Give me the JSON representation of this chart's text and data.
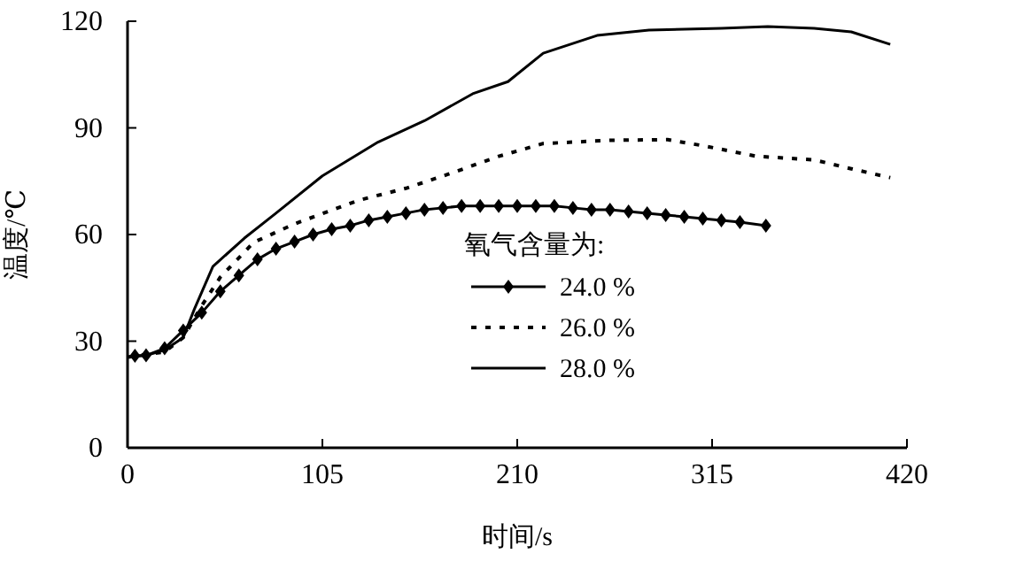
{
  "chart_data": {
    "type": "line",
    "xlabel": "时间/s",
    "ylabel": "温度/℃",
    "legend_title": "氧气含量为:",
    "legend": "right",
    "grid": false,
    "xlim": [
      0,
      420
    ],
    "xticks": [
      0,
      105,
      210,
      315,
      420
    ],
    "ylim": [
      0,
      120
    ],
    "yticks": [
      0,
      30,
      60,
      90,
      120
    ],
    "series": [
      {
        "name": "24.0 %",
        "color": "#000000",
        "marker": "diamond",
        "line_style": "solid",
        "x": [
          4,
          10,
          20,
          30,
          40,
          50,
          60,
          70,
          80,
          90,
          100,
          110,
          120,
          130,
          140,
          150,
          160,
          170,
          180,
          190,
          200,
          210,
          220,
          230,
          240,
          250,
          260,
          270,
          280,
          290,
          300,
          310,
          320,
          330,
          344
        ],
        "values": [
          25.9,
          26,
          28,
          33,
          38,
          44,
          48.5,
          53,
          56,
          58,
          60,
          61.5,
          62.5,
          64,
          65,
          66,
          67,
          67.5,
          68,
          68,
          68,
          68,
          68,
          68,
          67.5,
          67,
          67,
          66.5,
          66,
          65.5,
          65,
          64.5,
          64,
          63.5,
          62.5
        ]
      },
      {
        "name": "26.0 %",
        "color": "#000000",
        "marker": "none",
        "line_style": "dotted",
        "x": [
          0,
          20,
          30,
          40,
          50,
          68,
          90,
          125,
          150,
          173,
          200,
          224,
          260,
          291,
          310,
          339,
          370,
          390,
          411
        ],
        "values": [
          25.5,
          27,
          31,
          40,
          48,
          57.8,
          63,
          69.7,
          73,
          77,
          82,
          85.6,
          86.5,
          86.7,
          85,
          82,
          81,
          78.5,
          76
        ]
      },
      {
        "name": "28.0 %",
        "color": "#000000",
        "marker": "none",
        "line_style": "solid",
        "x": [
          0,
          10,
          20,
          30,
          36,
          46,
          63,
          80,
          105,
          135,
          160,
          186,
          205,
          224,
          253,
          281,
          320,
          345,
          370,
          390,
          411
        ],
        "values": [
          25.5,
          26,
          27.5,
          31,
          39,
          51,
          59,
          66,
          76.5,
          86,
          92,
          99.6,
          103,
          111,
          116,
          117.5,
          118,
          118.5,
          118,
          117,
          113.5
        ]
      }
    ]
  }
}
